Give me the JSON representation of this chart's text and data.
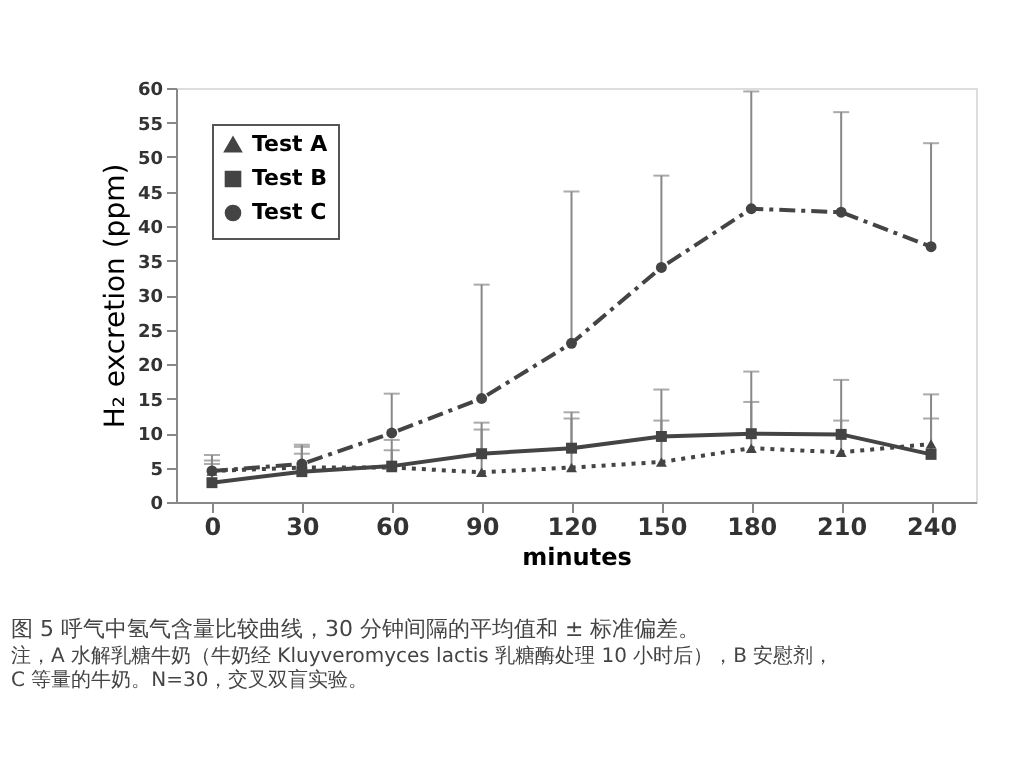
{
  "chart_data": {
    "type": "line",
    "xlabel": "minutes",
    "ylabel": "H₂ excretion (ppm)",
    "x": [
      0,
      30,
      60,
      90,
      120,
      150,
      180,
      210,
      240
    ],
    "xlim": [
      -12,
      255
    ],
    "xticks": [
      0,
      30,
      60,
      90,
      120,
      150,
      180,
      210,
      240
    ],
    "ylim": [
      0,
      60
    ],
    "yticks": [
      0,
      5,
      10,
      15,
      20,
      25,
      30,
      35,
      40,
      45,
      50,
      55,
      60
    ],
    "grid": false,
    "legend": "top left",
    "series": [
      {
        "name": "Test A",
        "color": "#444444",
        "marker": "triangle",
        "line_style": "dotted",
        "values": [
          4.5,
          5,
          5,
          4.3,
          5,
          5.8,
          7.8,
          7.2,
          8.4
        ],
        "errors": [
          [
            4.5,
            6.8
          ],
          [
            5,
            7
          ],
          [
            5,
            7.5
          ],
          [
            4.3,
            10.5
          ],
          [
            5,
            12.1
          ],
          [
            5.8,
            11.8
          ],
          [
            7.8,
            14.5
          ],
          [
            7.2,
            11.8
          ],
          [
            8.4,
            12.1
          ]
        ]
      },
      {
        "name": "Test B",
        "color": "#444444",
        "marker": "square",
        "line_style": "solid",
        "values": [
          2.8,
          4.4,
          5.2,
          7,
          7.8,
          9.5,
          9.9,
          9.8,
          6.9
        ],
        "errors": [
          [
            2.8,
            5.5
          ],
          [
            4.4,
            8
          ],
          [
            5.2,
            9
          ],
          [
            7,
            11.5
          ],
          [
            7.8,
            13
          ],
          [
            9.5,
            16.3
          ],
          [
            9.9,
            18.9
          ],
          [
            9.8,
            17.7
          ],
          [
            6.9,
            15.6
          ]
        ]
      },
      {
        "name": "Test C",
        "color": "#444444",
        "marker": "circle",
        "line_style": "dashdot",
        "values": [
          4.5,
          5.5,
          10,
          15,
          23,
          34,
          42.5,
          42,
          37
        ],
        "errors": [
          [
            4.5,
            6
          ],
          [
            5.5,
            8.3
          ],
          [
            10,
            15.7
          ],
          [
            15,
            31.5
          ],
          [
            23,
            45
          ],
          [
            34,
            47.3
          ],
          [
            42.5,
            59.5
          ],
          [
            42,
            56.5
          ],
          [
            37,
            52
          ]
        ]
      }
    ],
    "annotations": [
      "图 5 呼气中氢气含量比较曲线，30 分钟间隔的平均值和 ± 标准偏差。",
      "注，A 水解乳糖牛奶（牛奶经 Kluyveromyces lactis 乳糖酶处理 10 小时后），B 安慰剂，",
      "C 等量的牛奶。N=30，交叉双盲实验。"
    ]
  }
}
